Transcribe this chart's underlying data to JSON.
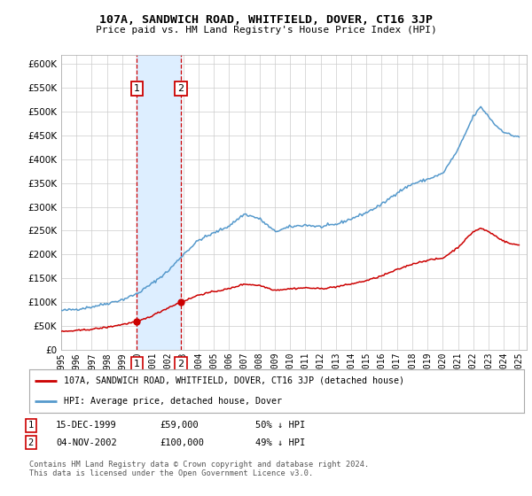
{
  "title": "107A, SANDWICH ROAD, WHITFIELD, DOVER, CT16 3JP",
  "subtitle": "Price paid vs. HM Land Registry's House Price Index (HPI)",
  "sale1_date_label": "15-DEC-1999",
  "sale1_price": 59000,
  "sale1_label": "1",
  "sale1_date_num": 1999.96,
  "sale2_date_label": "04-NOV-2002",
  "sale2_price": 100000,
  "sale2_label": "2",
  "sale2_date_num": 2002.84,
  "legend_line1": "107A, SANDWICH ROAD, WHITFIELD, DOVER, CT16 3JP (detached house)",
  "legend_line2": "HPI: Average price, detached house, Dover",
  "table_row1_label": "1",
  "table_row1_date": "15-DEC-1999",
  "table_row1_price": "£59,000",
  "table_row1_hpi": "50% ↓ HPI",
  "table_row2_label": "2",
  "table_row2_date": "04-NOV-2002",
  "table_row2_price": "£100,000",
  "table_row2_hpi": "49% ↓ HPI",
  "footer": "Contains HM Land Registry data © Crown copyright and database right 2024.\nThis data is licensed under the Open Government Licence v3.0.",
  "red_line_color": "#cc0000",
  "blue_line_color": "#5599cc",
  "shade_color": "#ddeeff",
  "grid_color": "#cccccc",
  "bg_color": "#ffffff",
  "ylim_max": 620000,
  "xlim_min": 1995.0,
  "xlim_max": 2025.5,
  "hpi_keypoints": [
    [
      1995.0,
      82000
    ],
    [
      1996.0,
      85000
    ],
    [
      1997.0,
      90000
    ],
    [
      1998.0,
      97000
    ],
    [
      1999.0,
      105000
    ],
    [
      2000.0,
      118000
    ],
    [
      2001.0,
      140000
    ],
    [
      2002.0,
      165000
    ],
    [
      2003.0,
      200000
    ],
    [
      2004.0,
      230000
    ],
    [
      2005.0,
      245000
    ],
    [
      2006.0,
      260000
    ],
    [
      2007.0,
      285000
    ],
    [
      2008.0,
      275000
    ],
    [
      2009.0,
      248000
    ],
    [
      2010.0,
      258000
    ],
    [
      2011.0,
      262000
    ],
    [
      2012.0,
      258000
    ],
    [
      2013.0,
      263000
    ],
    [
      2014.0,
      275000
    ],
    [
      2015.0,
      288000
    ],
    [
      2016.0,
      305000
    ],
    [
      2017.0,
      330000
    ],
    [
      2018.0,
      348000
    ],
    [
      2019.0,
      358000
    ],
    [
      2020.0,
      370000
    ],
    [
      2021.0,
      420000
    ],
    [
      2022.0,
      490000
    ],
    [
      2022.5,
      510000
    ],
    [
      2023.0,
      490000
    ],
    [
      2023.5,
      470000
    ],
    [
      2024.0,
      458000
    ],
    [
      2024.5,
      450000
    ],
    [
      2025.0,
      448000
    ]
  ],
  "red_keypoints": [
    [
      1995.0,
      38000
    ],
    [
      1996.0,
      40000
    ],
    [
      1997.0,
      43000
    ],
    [
      1998.0,
      47000
    ],
    [
      1999.0,
      53000
    ],
    [
      1999.96,
      59000
    ],
    [
      2000.5,
      65000
    ],
    [
      2001.0,
      72000
    ],
    [
      2002.0,
      88000
    ],
    [
      2002.84,
      100000
    ],
    [
      2003.5,
      108000
    ],
    [
      2004.0,
      115000
    ],
    [
      2005.0,
      122000
    ],
    [
      2006.0,
      128000
    ],
    [
      2007.0,
      138000
    ],
    [
      2008.0,
      135000
    ],
    [
      2009.0,
      125000
    ],
    [
      2010.0,
      128000
    ],
    [
      2011.0,
      130000
    ],
    [
      2012.0,
      128000
    ],
    [
      2013.0,
      132000
    ],
    [
      2014.0,
      138000
    ],
    [
      2015.0,
      145000
    ],
    [
      2016.0,
      155000
    ],
    [
      2017.0,
      168000
    ],
    [
      2018.0,
      180000
    ],
    [
      2019.0,
      188000
    ],
    [
      2020.0,
      192000
    ],
    [
      2021.0,
      215000
    ],
    [
      2022.0,
      248000
    ],
    [
      2022.5,
      255000
    ],
    [
      2023.0,
      248000
    ],
    [
      2023.5,
      238000
    ],
    [
      2024.0,
      228000
    ],
    [
      2024.5,
      222000
    ],
    [
      2025.0,
      220000
    ]
  ]
}
